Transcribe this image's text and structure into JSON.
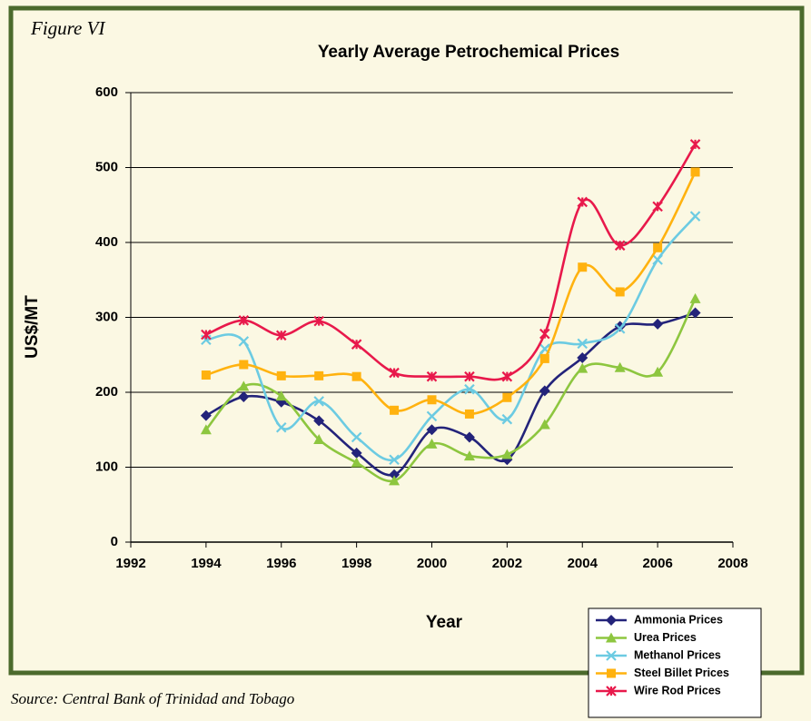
{
  "chart_data": {
    "type": "line",
    "figure_label": "Figure VI",
    "title": "Yearly Average Petrochemical Prices",
    "x_label": "Year",
    "y_label": "US$/MT",
    "source": "Source: Central Bank of Trinidad and Tobago",
    "x": [
      1994,
      1995,
      1996,
      1997,
      1998,
      1999,
      2000,
      2001,
      2002,
      2003,
      2004,
      2005,
      2006,
      2007
    ],
    "xlim": [
      1992,
      2008
    ],
    "xticks": [
      1992,
      1994,
      1996,
      1998,
      2000,
      2002,
      2004,
      2006,
      2008
    ],
    "ylim": [
      0,
      600
    ],
    "yticks": [
      0,
      100,
      200,
      300,
      400,
      500,
      600
    ],
    "grid": true,
    "smooth": true,
    "legend": "bottom-right",
    "series": [
      {
        "name": "Ammonia Prices",
        "color": "#23237a",
        "marker": "diamond",
        "values": [
          169,
          194,
          187,
          162,
          119,
          90,
          150,
          140,
          110,
          202,
          246,
          288,
          291,
          306
        ]
      },
      {
        "name": "Urea Prices",
        "color": "#8dc63f",
        "marker": "triangle",
        "values": [
          150,
          208,
          195,
          137,
          106,
          82,
          131,
          115,
          117,
          157,
          232,
          233,
          227,
          325
        ]
      },
      {
        "name": "Methanol Prices",
        "color": "#6ccbe2",
        "marker": "x",
        "values": [
          270,
          268,
          153,
          188,
          140,
          110,
          168,
          204,
          164,
          258,
          265,
          285,
          377,
          435
        ]
      },
      {
        "name": "Steel Billet Prices",
        "color": "#ffb20f",
        "marker": "square",
        "values": [
          223,
          237,
          222,
          222,
          221,
          176,
          190,
          171,
          193,
          245,
          367,
          334,
          393,
          494
        ]
      },
      {
        "name": "Wire Rod Prices",
        "color": "#e8194b",
        "marker": "star",
        "values": [
          277,
          296,
          276,
          295,
          264,
          226,
          221,
          221,
          221,
          278,
          454,
          396,
          448,
          531
        ]
      }
    ]
  }
}
